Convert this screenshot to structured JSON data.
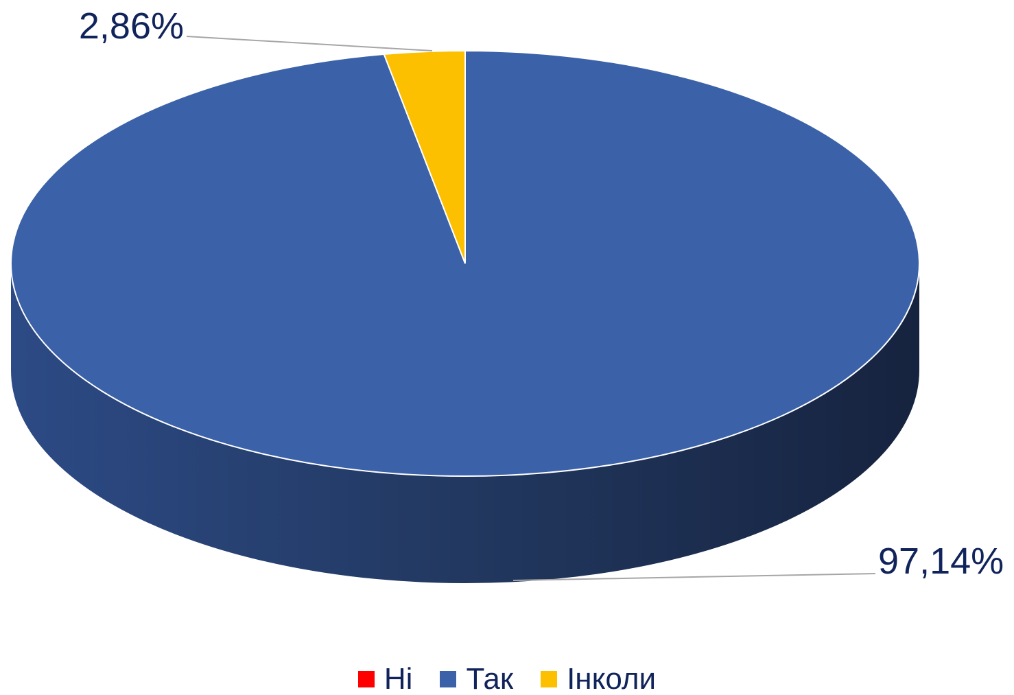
{
  "chart_data": {
    "type": "pie",
    "title": "",
    "categories": [
      "Ні",
      "Так",
      "Інколи"
    ],
    "values": [
      0,
      97.14,
      2.86
    ],
    "data_labels": [
      "",
      "97,14%",
      "2,86%"
    ],
    "colors": [
      "#ff0000",
      "#3b62a8",
      "#fcc000"
    ],
    "legend_position": "bottom",
    "style": "3d"
  },
  "legend": {
    "items": [
      {
        "label": "Ні",
        "color": "#ff0000"
      },
      {
        "label": "Так",
        "color": "#3b62a8"
      },
      {
        "label": "Інколи",
        "color": "#fcc000"
      }
    ]
  }
}
